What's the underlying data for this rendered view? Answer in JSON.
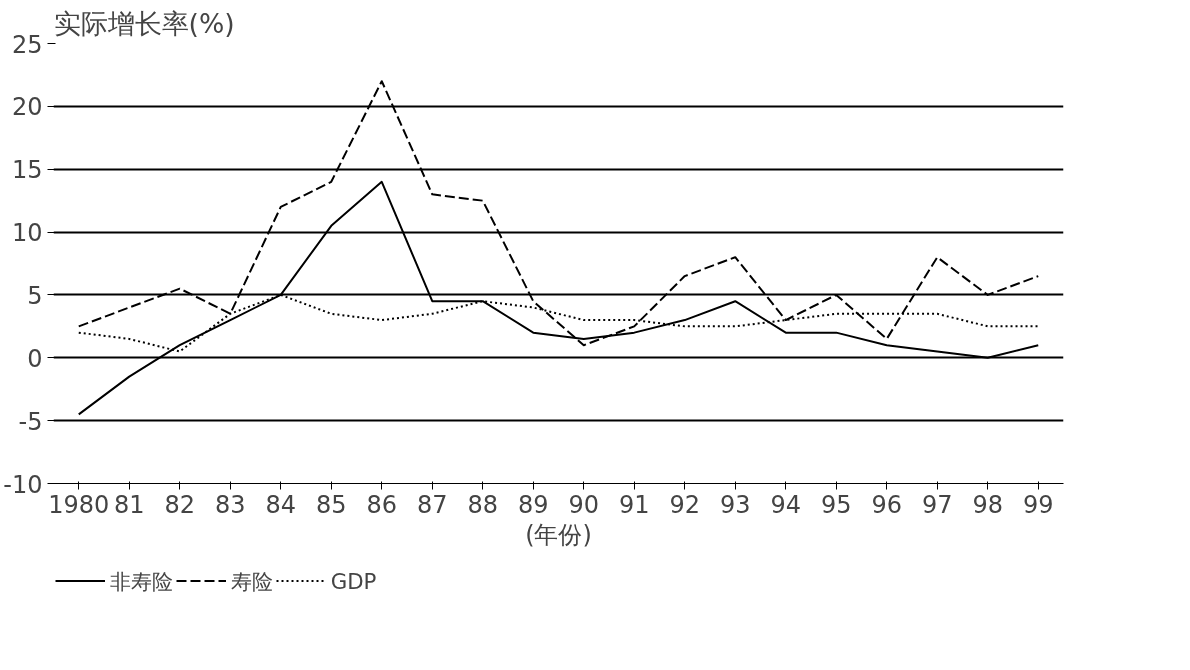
{
  "chart_data": {
    "type": "line",
    "ylabel": "实际增长率(%)",
    "xlabel": "(年份)",
    "categories": [
      "1980",
      "81",
      "82",
      "83",
      "84",
      "85",
      "86",
      "87",
      "88",
      "89",
      "90",
      "91",
      "92",
      "93",
      "94",
      "95",
      "96",
      "97",
      "98",
      "99"
    ],
    "series": [
      {
        "name": "非寿险",
        "color": "#000000",
        "line_style": "solid",
        "values": [
          -4.5,
          -1.5,
          1,
          3,
          5,
          10.5,
          14,
          4.5,
          4.5,
          2,
          1.5,
          2,
          3,
          4.5,
          2,
          2,
          1,
          0.5,
          0,
          1
        ]
      },
      {
        "name": "寿险",
        "color": "#000000",
        "line_style": "dashed",
        "values": [
          2.5,
          4,
          5.5,
          3.5,
          12,
          14,
          22,
          13,
          12.5,
          4.5,
          1,
          2.5,
          6.5,
          8,
          3,
          5,
          1.5,
          8,
          5,
          6.5
        ]
      },
      {
        "name": "GDP",
        "color": "#000000",
        "line_style": "dotted",
        "values": [
          2,
          1.5,
          0.5,
          3.5,
          5,
          3.5,
          3,
          3.5,
          4.5,
          4,
          3,
          3,
          2.5,
          2.5,
          3,
          3.5,
          3.5,
          3.5,
          2.5,
          2.5
        ]
      }
    ],
    "ylim": [
      -10,
      25
    ],
    "yticks": [
      -10,
      -5,
      0,
      5,
      10,
      15,
      20,
      25
    ],
    "grid": "y",
    "legend": "bottom"
  }
}
